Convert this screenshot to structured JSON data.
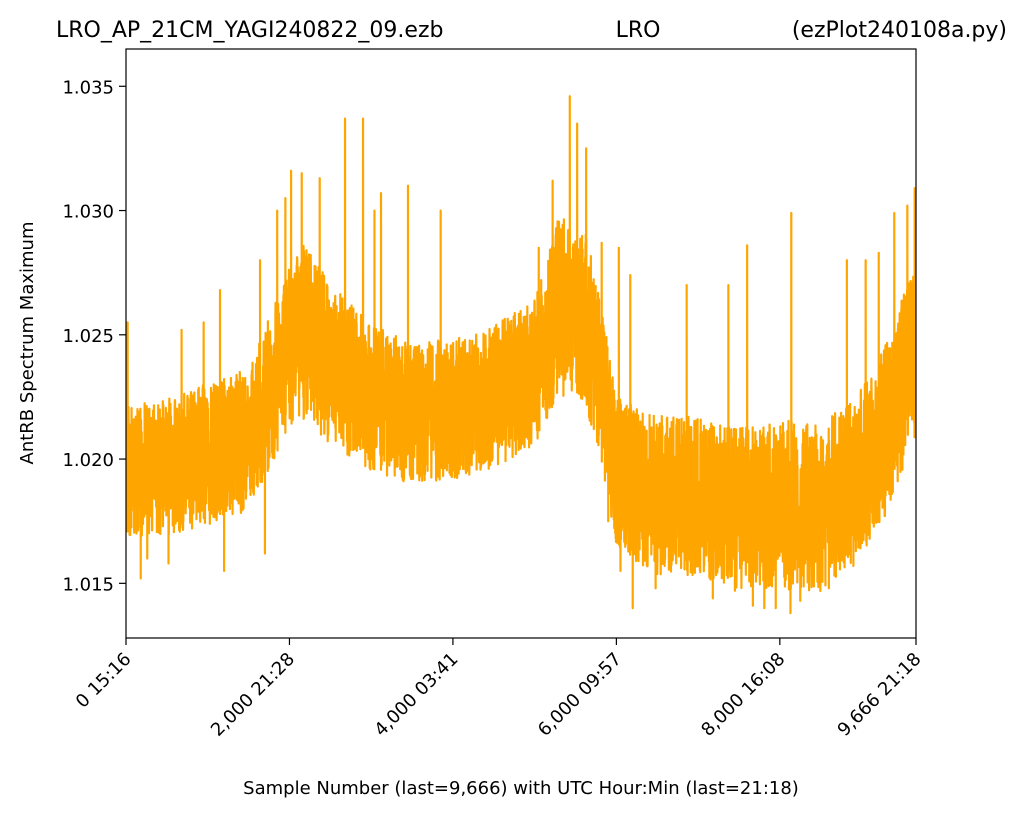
{
  "chart_data": {
    "type": "line",
    "title_left": "LRO_AP_21CM_YAGI240822_09.ezb",
    "title_center": "LRO",
    "title_right": "(ezPlot240108a.py)",
    "xlabel": "Sample Number (last=9,666) with UTC Hour:Min (last=21:18)",
    "ylabel": "AntRB Spectrum Maximum",
    "xlim": [
      0,
      9666
    ],
    "ylim": [
      1.0128,
      1.0365
    ],
    "grid": false,
    "x_ticks": [
      {
        "value": 0,
        "label": "0  15:16"
      },
      {
        "value": 2000,
        "label": "2,000  21:28"
      },
      {
        "value": 4000,
        "label": "4,000  03:41"
      },
      {
        "value": 6000,
        "label": "6,000  09:57"
      },
      {
        "value": 8000,
        "label": "8,000  16:08"
      },
      {
        "value": 9666,
        "label": "9,666  21:18"
      }
    ],
    "y_ticks": [
      {
        "value": 1.015,
        "label": "1.015"
      },
      {
        "value": 1.02,
        "label": "1.020"
      },
      {
        "value": 1.025,
        "label": "1.025"
      },
      {
        "value": 1.03,
        "label": "1.030"
      },
      {
        "value": 1.035,
        "label": "1.035"
      }
    ],
    "series": [
      {
        "color": "#ffa500",
        "samples": 9667,
        "center_x": [
          0,
          500,
          1000,
          1500,
          2000,
          2200,
          2500,
          3000,
          3500,
          4000,
          4500,
          5000,
          5300,
          5600,
          5800,
          6000,
          6500,
          7000,
          7500,
          8000,
          8500,
          9000,
          9300,
          9666
        ],
        "center_y": [
          1.0195,
          1.0197,
          1.0202,
          1.0208,
          1.0245,
          1.0252,
          1.0238,
          1.0225,
          1.0218,
          1.022,
          1.0225,
          1.0235,
          1.0262,
          1.0258,
          1.0235,
          1.0195,
          1.0185,
          1.0185,
          1.018,
          1.0182,
          1.018,
          1.0195,
          1.0212,
          1.0245
        ],
        "half_range": [
          0.0028,
          0.0029,
          0.003,
          0.003,
          0.0034,
          0.0038,
          0.0034,
          0.0031,
          0.003,
          0.003,
          0.003,
          0.0031,
          0.0038,
          0.0038,
          0.0034,
          0.0032,
          0.0034,
          0.0034,
          0.0034,
          0.0036,
          0.0035,
          0.0035,
          0.0036,
          0.0038
        ],
        "peaks": [
          {
            "x": 20,
            "y": 1.0255
          },
          {
            "x": 680,
            "y": 1.0252
          },
          {
            "x": 950,
            "y": 1.0255
          },
          {
            "x": 1150,
            "y": 1.0268
          },
          {
            "x": 1640,
            "y": 1.028
          },
          {
            "x": 1850,
            "y": 1.03
          },
          {
            "x": 1950,
            "y": 1.0305
          },
          {
            "x": 2020,
            "y": 1.0316
          },
          {
            "x": 2150,
            "y": 1.0315
          },
          {
            "x": 2370,
            "y": 1.0313
          },
          {
            "x": 2680,
            "y": 1.0337
          },
          {
            "x": 2900,
            "y": 1.0337
          },
          {
            "x": 3040,
            "y": 1.03
          },
          {
            "x": 3120,
            "y": 1.0307
          },
          {
            "x": 3450,
            "y": 1.031
          },
          {
            "x": 3850,
            "y": 1.03
          },
          {
            "x": 5050,
            "y": 1.0285
          },
          {
            "x": 5220,
            "y": 1.0312
          },
          {
            "x": 5430,
            "y": 1.0346
          },
          {
            "x": 5520,
            "y": 1.0335
          },
          {
            "x": 5630,
            "y": 1.0325
          },
          {
            "x": 5820,
            "y": 1.0287
          },
          {
            "x": 6030,
            "y": 1.0285
          },
          {
            "x": 6170,
            "y": 1.0274
          },
          {
            "x": 6860,
            "y": 1.027
          },
          {
            "x": 7370,
            "y": 1.027
          },
          {
            "x": 7600,
            "y": 1.0286
          },
          {
            "x": 8140,
            "y": 1.0299
          },
          {
            "x": 8820,
            "y": 1.028
          },
          {
            "x": 9050,
            "y": 1.028
          },
          {
            "x": 9210,
            "y": 1.0283
          },
          {
            "x": 9400,
            "y": 1.0299
          },
          {
            "x": 9560,
            "y": 1.0302
          },
          {
            "x": 9650,
            "y": 1.0309
          }
        ],
        "troughs": [
          {
            "x": 180,
            "y": 1.0152
          },
          {
            "x": 260,
            "y": 1.016
          },
          {
            "x": 520,
            "y": 1.0158
          },
          {
            "x": 1200,
            "y": 1.0155
          },
          {
            "x": 1700,
            "y": 1.0162
          },
          {
            "x": 5900,
            "y": 1.0175
          },
          {
            "x": 6050,
            "y": 1.0155
          },
          {
            "x": 6200,
            "y": 1.014
          },
          {
            "x": 6480,
            "y": 1.0148
          },
          {
            "x": 7180,
            "y": 1.0144
          },
          {
            "x": 7450,
            "y": 1.0147
          },
          {
            "x": 7670,
            "y": 1.0141
          },
          {
            "x": 7810,
            "y": 1.014
          },
          {
            "x": 7950,
            "y": 1.014
          },
          {
            "x": 8130,
            "y": 1.0138
          },
          {
            "x": 8250,
            "y": 1.0143
          },
          {
            "x": 8600,
            "y": 1.0148
          },
          {
            "x": 8900,
            "y": 1.0157
          }
        ]
      }
    ]
  }
}
